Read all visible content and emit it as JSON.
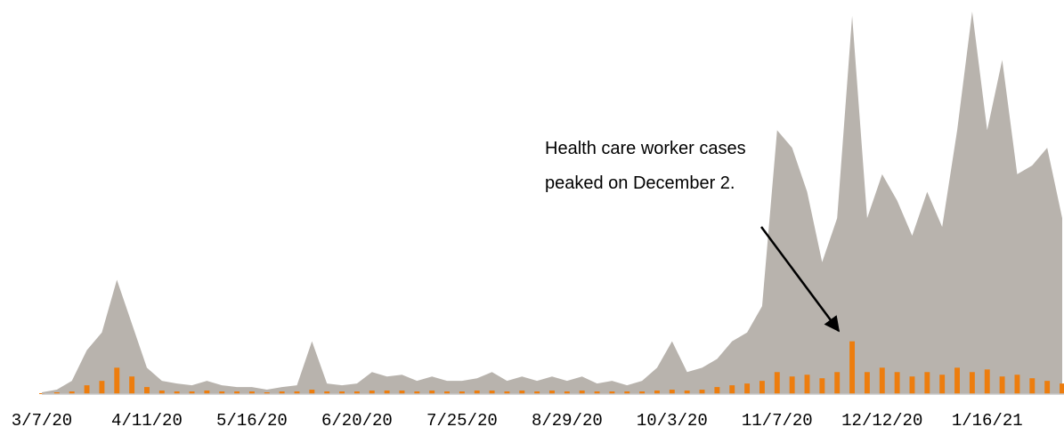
{
  "chart_data": {
    "type": "area",
    "categories": [
      "3/7/20",
      null,
      null,
      null,
      null,
      null,
      null,
      "4/11/20",
      null,
      null,
      null,
      null,
      null,
      null,
      "5/16/20",
      null,
      null,
      null,
      null,
      null,
      null,
      "6/20/20",
      null,
      null,
      null,
      null,
      null,
      null,
      "7/25/20",
      null,
      null,
      null,
      null,
      null,
      null,
      "8/29/20",
      null,
      null,
      null,
      null,
      null,
      null,
      "10/3/20",
      null,
      null,
      null,
      null,
      null,
      null,
      "11/7/20",
      null,
      null,
      null,
      null,
      null,
      null,
      "12/12/20",
      null,
      null,
      null,
      null,
      null,
      null,
      "1/16/21",
      null,
      null,
      null,
      null,
      null
    ],
    "series": [
      {
        "style": "area",
        "color": "#b8b3ad",
        "values": [
          2,
          5,
          15,
          50,
          70,
          130,
          80,
          30,
          15,
          12,
          10,
          15,
          10,
          8,
          8,
          5,
          8,
          10,
          60,
          12,
          10,
          12,
          25,
          20,
          22,
          15,
          20,
          15,
          15,
          18,
          25,
          15,
          20,
          15,
          20,
          15,
          20,
          12,
          15,
          10,
          15,
          30,
          60,
          25,
          30,
          40,
          60,
          70,
          100,
          300,
          280,
          230,
          150,
          200,
          430,
          200,
          250,
          220,
          180,
          230,
          190,
          300,
          435,
          300,
          380,
          250,
          260,
          280,
          200
        ]
      },
      {
        "style": "bar",
        "color": "#ed7d0e",
        "values": [
          1,
          2,
          3,
          10,
          15,
          30,
          20,
          8,
          4,
          3,
          3,
          4,
          3,
          3,
          3,
          2,
          3,
          3,
          5,
          3,
          3,
          3,
          4,
          4,
          4,
          3,
          4,
          3,
          3,
          4,
          4,
          3,
          4,
          3,
          4,
          3,
          4,
          3,
          3,
          3,
          3,
          4,
          5,
          4,
          5,
          8,
          10,
          12,
          15,
          25,
          20,
          22,
          18,
          25,
          60,
          25,
          30,
          25,
          20,
          25,
          22,
          30,
          25,
          28,
          20,
          22,
          18,
          15,
          12
        ]
      }
    ],
    "ylim": [
      0,
      440
    ],
    "annotation": [
      "Health care worker cases",
      "peaked on December 2."
    ]
  }
}
